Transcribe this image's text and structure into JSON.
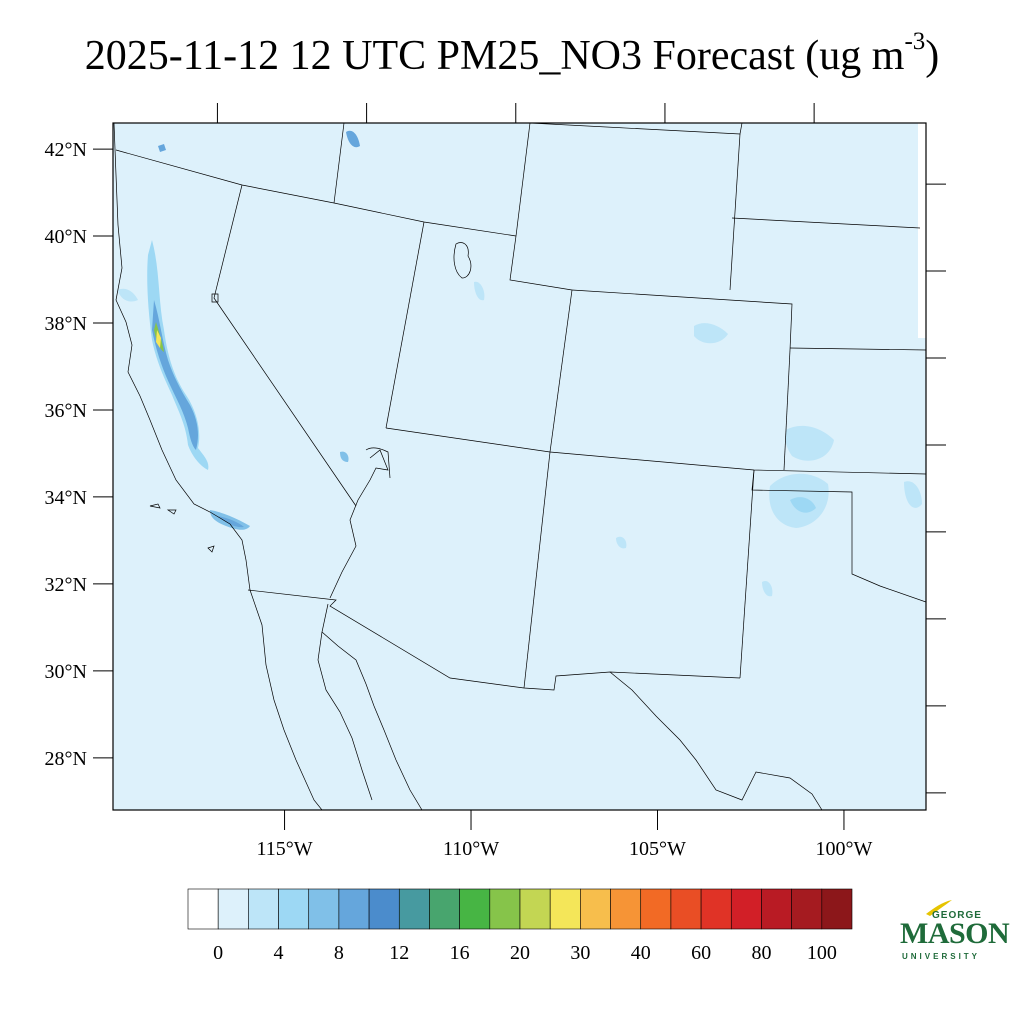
{
  "title": {
    "main": "2025-11-12 12 UTC PM25_NO3 Forecast (ug m",
    "exponent": "-3",
    "close": ")"
  },
  "map": {
    "lon_range": [
      -119.6,
      -97.8
    ],
    "lat_range": [
      26.8,
      42.6
    ],
    "background_color": "#ddf1fb",
    "lat_ticks": [
      {
        "value": 42,
        "label": "42°N"
      },
      {
        "value": 40,
        "label": "40°N"
      },
      {
        "value": 38,
        "label": "38°N"
      },
      {
        "value": 36,
        "label": "36°N"
      },
      {
        "value": 34,
        "label": "34°N"
      },
      {
        "value": 32,
        "label": "32°N"
      },
      {
        "value": 30,
        "label": "30°N"
      },
      {
        "value": 28,
        "label": "28°N"
      }
    ],
    "lon_ticks": [
      {
        "value": -115,
        "label": "115°W"
      },
      {
        "value": -110,
        "label": "110°W"
      },
      {
        "value": -105,
        "label": "105°W"
      },
      {
        "value": -100,
        "label": "100°W"
      }
    ]
  },
  "colorbar": {
    "colors": [
      "#ffffff",
      "#ddf1fb",
      "#bde5f8",
      "#9dd8f4",
      "#80c0e8",
      "#65a6dc",
      "#4b8ccc",
      "#479aa0",
      "#48a56e",
      "#47b544",
      "#86c44a",
      "#c3d653",
      "#f4e659",
      "#f7be4c",
      "#f69436",
      "#f26a25",
      "#e94e25",
      "#e03326",
      "#d21f27",
      "#b91b24",
      "#a51b20",
      "#8c171a"
    ],
    "labels": [
      "0",
      "4",
      "8",
      "12",
      "16",
      "20",
      "30",
      "40",
      "60",
      "80",
      "100"
    ]
  },
  "logo": {
    "top": "GEORGE",
    "main": "MASON",
    "bottom": "UNIVERSITY"
  }
}
